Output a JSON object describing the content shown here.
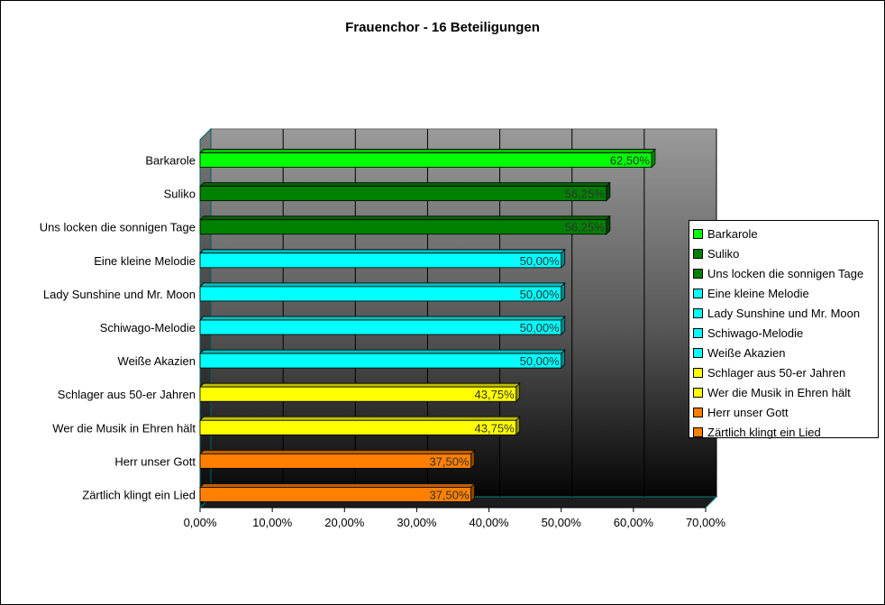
{
  "chart_data": {
    "type": "bar",
    "orientation": "horizontal",
    "title": "Frauenchor - 16 Beteiligungen",
    "categories": [
      "Barkarole",
      "Suliko",
      "Uns locken die sonnigen Tage",
      "Eine kleine Melodie",
      "Lady Sunshine und Mr. Moon",
      "Schiwago-Melodie",
      "Weiße Akazien",
      "Schlager aus 50-er Jahren",
      "Wer die Musik in Ehren hält",
      "Herr unser Gott",
      "Zärtlich klingt ein Lied"
    ],
    "values": [
      62.5,
      56.25,
      56.25,
      50,
      50,
      50,
      50,
      43.75,
      43.75,
      37.5,
      37.5
    ],
    "data_labels": [
      "62,50%",
      "56,25%",
      "56,25%",
      "50,00%",
      "50,00%",
      "50,00%",
      "50,00%",
      "43,75%",
      "43,75%",
      "37,50%",
      "37,50%"
    ],
    "colors": [
      "#00ff00",
      "#008000",
      "#008000",
      "#00ffff",
      "#00ffff",
      "#00ffff",
      "#00ffff",
      "#ffff00",
      "#ffff00",
      "#ff8000",
      "#ff8000"
    ],
    "x_ticks": [
      "0,00%",
      "10,00%",
      "20,00%",
      "30,00%",
      "40,00%",
      "50,00%",
      "60,00%",
      "70,00%"
    ],
    "xlim": [
      0,
      70
    ],
    "grid": true,
    "legend_position": "right",
    "xlabel": "",
    "ylabel": ""
  }
}
